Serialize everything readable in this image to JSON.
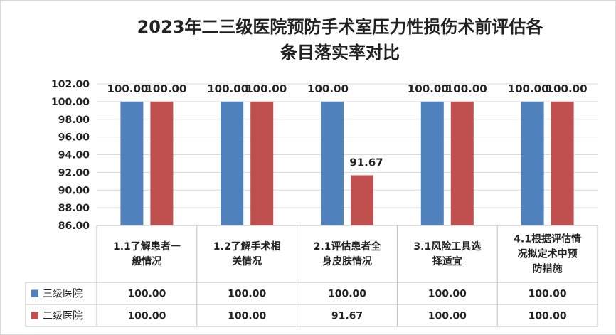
{
  "chart_data": {
    "type": "bar",
    "title_lines": [
      "2023年二三级医院预防手术室压力性损伤术前评估各",
      "条目落实率对比"
    ],
    "categories": [
      [
        "1.1了解患者一",
        "般情况"
      ],
      [
        "1.2了解手术相",
        "关情况"
      ],
      [
        "2.1评估患者全",
        "身皮肤情况"
      ],
      [
        "3.1风险工具选",
        "择适宜"
      ],
      [
        "4.1根据评估情",
        "况拟定术中预",
        "防措施"
      ]
    ],
    "series": [
      {
        "name": "三级医院",
        "color": "#4f81bd",
        "values": [
          100.0,
          100.0,
          100.0,
          100.0,
          100.0
        ],
        "labels": [
          "100.00",
          "100.00",
          "100.00",
          "100.00",
          "100.00"
        ]
      },
      {
        "name": "二级医院",
        "color": "#c0504d",
        "values": [
          100.0,
          100.0,
          91.67,
          100.0,
          100.0
        ],
        "labels": [
          "100.00",
          "100.00",
          "91.67",
          "100.00",
          "100.00"
        ]
      }
    ],
    "ylim": [
      86,
      102
    ],
    "yticks": [
      "86.00",
      "88.00",
      "90.00",
      "92.00",
      "94.00",
      "96.00",
      "98.00",
      "100.00",
      "102.00"
    ],
    "grid": true,
    "legend": "data-table"
  }
}
